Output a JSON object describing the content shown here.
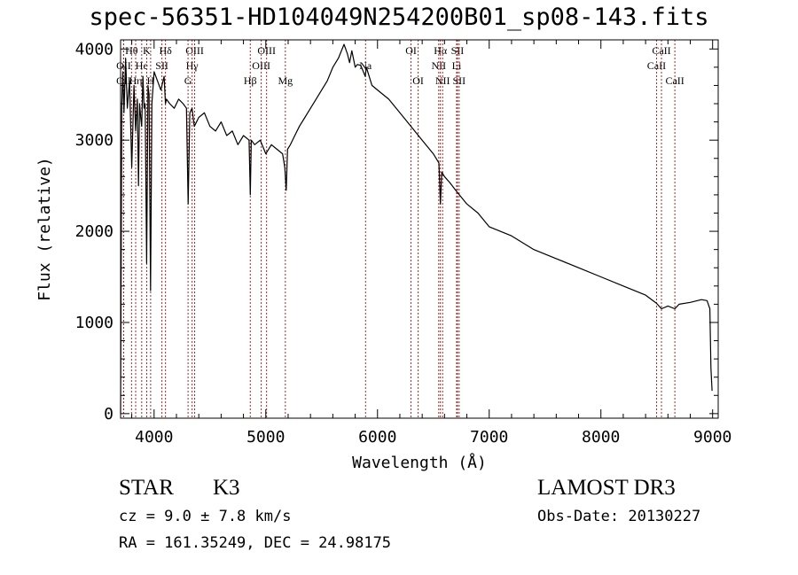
{
  "header": {
    "title": "spec-56351-HD104049N254200B01_sp08-143.fits"
  },
  "info": {
    "object_class": "STAR",
    "subclass": "K3",
    "survey": "LAMOST DR3",
    "cz": "cz = 9.0 ± 7.8 km/s",
    "obs_date": "Obs-Date: 20130227",
    "radec": "RA = 161.35249, DEC =  24.98175"
  },
  "colors": {
    "line_marker": "#b22222",
    "spectrum": "#000000",
    "axes": "#000000"
  },
  "chart_data": {
    "type": "line",
    "title": "spec-56351-HD104049N254200B01_sp08-143.fits",
    "xlabel": "Wavelength (Å)",
    "ylabel": "Flux (relative)",
    "xlim": [
      3700,
      9050
    ],
    "ylim": [
      -50,
      4100
    ],
    "x_ticks": [
      4000,
      5000,
      6000,
      7000,
      8000,
      9000
    ],
    "y_ticks": [
      0,
      1000,
      2000,
      3000,
      4000
    ],
    "series": [
      {
        "name": "spectrum",
        "x": [
          3700,
          3705,
          3710,
          3720,
          3730,
          3745,
          3760,
          3780,
          3800,
          3820,
          3835,
          3850,
          3860,
          3870,
          3880,
          3889,
          3900,
          3910,
          3920,
          3933,
          3945,
          3955,
          3968,
          3980,
          4000,
          4030,
          4060,
          4090,
          4102,
          4110,
          4140,
          4180,
          4220,
          4260,
          4290,
          4305,
          4320,
          4340,
          4360,
          4400,
          4450,
          4500,
          4550,
          4600,
          4650,
          4700,
          4750,
          4800,
          4850,
          4861,
          4870,
          4900,
          4950,
          5000,
          5050,
          5100,
          5150,
          5170,
          5183,
          5195,
          5220,
          5260,
          5300,
          5350,
          5400,
          5450,
          5500,
          5550,
          5600,
          5650,
          5700,
          5730,
          5750,
          5770,
          5800,
          5820,
          5850,
          5890,
          5900,
          5950,
          6000,
          6100,
          6200,
          6300,
          6400,
          6500,
          6550,
          6563,
          6575,
          6600,
          6650,
          6700,
          6800,
          6900,
          7000,
          7200,
          7400,
          7600,
          7800,
          8000,
          8200,
          8400,
          8498,
          8542,
          8600,
          8662,
          8700,
          8800,
          8900,
          8950,
          8975,
          8985,
          8995
        ],
        "y": [
          0,
          1600,
          3350,
          3750,
          3300,
          3900,
          3350,
          3650,
          2700,
          3600,
          3100,
          3450,
          2500,
          3400,
          3250,
          3150,
          3700,
          3350,
          3400,
          1650,
          3600,
          3500,
          1350,
          3400,
          3750,
          3650,
          3550,
          3700,
          3400,
          3450,
          3400,
          3350,
          3450,
          3400,
          3350,
          2300,
          3300,
          3350,
          3150,
          3250,
          3300,
          3150,
          3100,
          3200,
          3050,
          3100,
          2950,
          3050,
          3000,
          2400,
          3000,
          2950,
          3000,
          2850,
          2950,
          2900,
          2850,
          2700,
          2450,
          2900,
          2950,
          3050,
          3150,
          3250,
          3350,
          3450,
          3550,
          3650,
          3800,
          3900,
          4050,
          3950,
          3850,
          3980,
          3800,
          3830,
          3820,
          3700,
          3800,
          3600,
          3550,
          3450,
          3300,
          3150,
          3000,
          2850,
          2750,
          2300,
          2650,
          2600,
          2530,
          2450,
          2300,
          2200,
          2050,
          1950,
          1800,
          1700,
          1600,
          1500,
          1400,
          1300,
          1210,
          1150,
          1180,
          1150,
          1200,
          1220,
          1250,
          1240,
          1150,
          500,
          250
        ]
      }
    ],
    "line_markers": [
      {
        "label": "OII",
        "x": 3727,
        "row": 3
      },
      {
        "label": "Hθ",
        "x": 3798,
        "row": 1
      },
      {
        "label": "OII",
        "x": 3727,
        "row": 2
      },
      {
        "label": "Hη",
        "x": 3835,
        "row": 3
      },
      {
        "label": "He",
        "x": 3889,
        "row": 2
      },
      {
        "label": "K",
        "x": 3934,
        "row": 1
      },
      {
        "label": "H",
        "x": 3969,
        "row": 3
      },
      {
        "label": "Hδ",
        "x": 4102,
        "row": 1
      },
      {
        "label": "SII",
        "x": 4070,
        "row": 2
      },
      {
        "label": "OIII",
        "x": 4363,
        "row": 1
      },
      {
        "label": "Hγ",
        "x": 4340,
        "row": 2
      },
      {
        "label": "G",
        "x": 4304,
        "row": 3
      },
      {
        "label": "Hβ",
        "x": 4861,
        "row": 3
      },
      {
        "label": "OIII",
        "x": 4959,
        "row": 2
      },
      {
        "label": "OIII",
        "x": 5007,
        "row": 1
      },
      {
        "label": "Mg",
        "x": 5175,
        "row": 3
      },
      {
        "label": "Na",
        "x": 5893,
        "row": 2
      },
      {
        "label": "OI",
        "x": 6300,
        "row": 1
      },
      {
        "label": "OI",
        "x": 6364,
        "row": 3
      },
      {
        "label": "NII",
        "x": 6548,
        "row": 2
      },
      {
        "label": "Hα",
        "x": 6563,
        "row": 1
      },
      {
        "label": "NII",
        "x": 6583,
        "row": 3
      },
      {
        "label": "SII",
        "x": 6716,
        "row": 1
      },
      {
        "label": "Li",
        "x": 6708,
        "row": 2
      },
      {
        "label": "SII",
        "x": 6731,
        "row": 3
      },
      {
        "label": "CaII",
        "x": 8498,
        "row": 2
      },
      {
        "label": "CaII",
        "x": 8542,
        "row": 1
      },
      {
        "label": "CaII",
        "x": 8662,
        "row": 3
      }
    ]
  }
}
